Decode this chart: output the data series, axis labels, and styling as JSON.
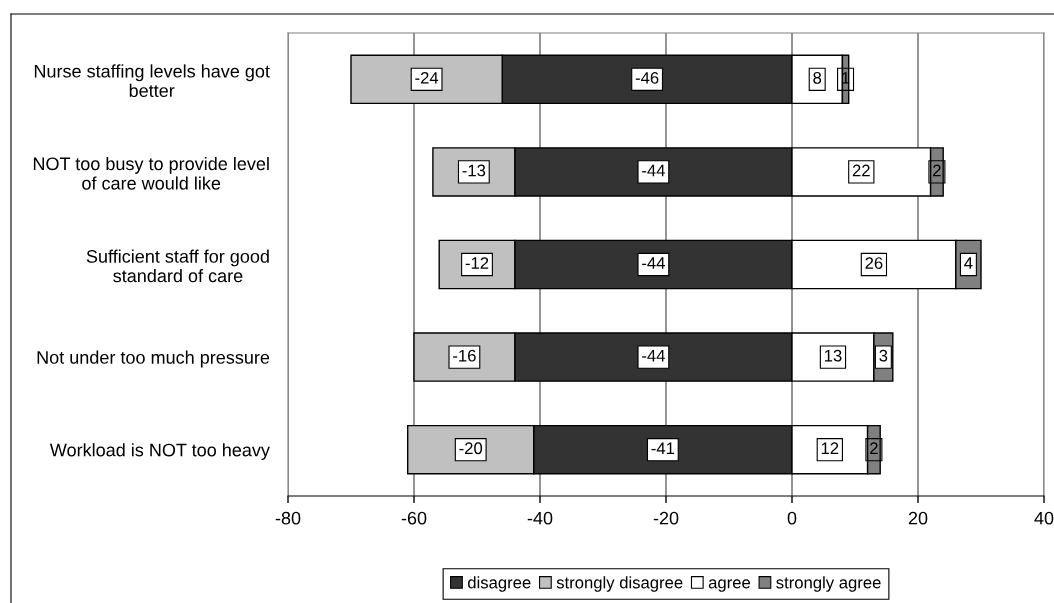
{
  "chart_data": {
    "type": "bar",
    "orientation": "horizontal",
    "stacked": true,
    "categories": [
      "Nurse staffing levels have got\nbetter",
      "NOT too busy to provide level\nof care would like",
      "Sufficient staff for good\nstandard of care",
      "Not under too much pressure",
      "Workload is NOT too heavy"
    ],
    "series": [
      {
        "name": "disagree",
        "color": "#333333",
        "values": [
          -46,
          -44,
          -44,
          -44,
          -41
        ]
      },
      {
        "name": "strongly disagree",
        "color": "#c0c0c0",
        "values": [
          -24,
          -13,
          -12,
          -16,
          -20
        ]
      },
      {
        "name": "agree",
        "color": "#ffffff",
        "values": [
          8,
          22,
          26,
          13,
          12
        ]
      },
      {
        "name": "strongly agree",
        "color": "#808080",
        "values": [
          1,
          2,
          4,
          3,
          2
        ]
      }
    ],
    "xlim": [
      -80,
      40
    ],
    "xticks": [
      -80,
      -60,
      -40,
      -20,
      0,
      20,
      40
    ],
    "grid": "x",
    "legend": "bottom",
    "data_labels": true
  }
}
